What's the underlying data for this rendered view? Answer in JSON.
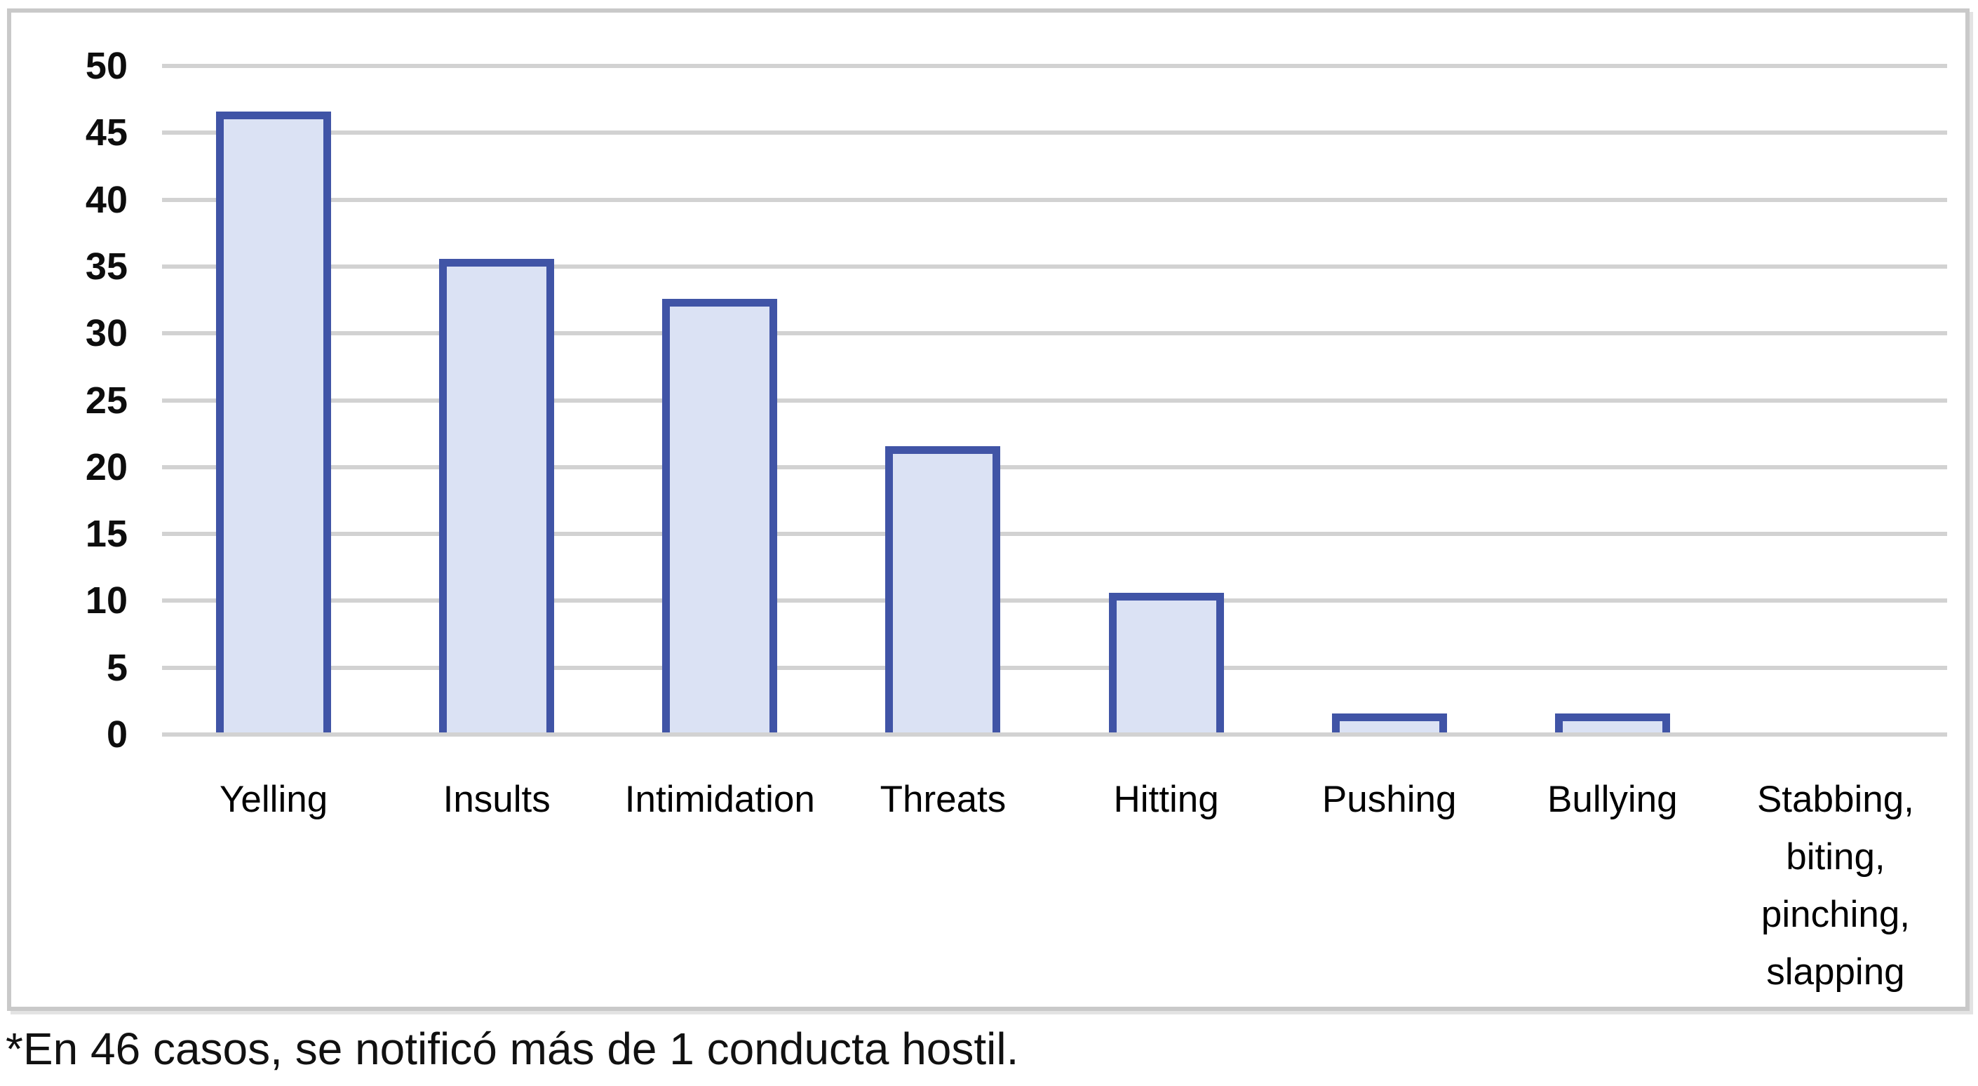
{
  "figure": {
    "footnote": "*En 46 casos, se notificó más de 1 conducta hostil."
  },
  "chart_data": {
    "type": "bar",
    "title": "",
    "categories": [
      "Yelling",
      "Insults",
      "Intimidation",
      "Threats",
      "Hitting",
      "Pushing",
      "Bullying",
      "Stabbing, biting, pinching, slapping"
    ],
    "category_lines": [
      [
        "Yelling"
      ],
      [
        "Insults"
      ],
      [
        "Intimidation"
      ],
      [
        "Threats"
      ],
      [
        "Hitting"
      ],
      [
        "Pushing"
      ],
      [
        "Bullying"
      ],
      [
        "Stabbing,",
        "biting,",
        "pinching,",
        "slapping"
      ]
    ],
    "values": [
      46,
      35,
      32,
      21,
      10,
      1,
      1,
      0
    ],
    "xlabel": "",
    "ylabel": "",
    "ylim": [
      0,
      50
    ],
    "yticks": [
      0,
      5,
      10,
      15,
      20,
      25,
      30,
      35,
      40,
      45,
      50
    ],
    "grid": true,
    "legend": false,
    "colors": {
      "bar_fill": "#dbe2f4",
      "bar_border": "#4054a6",
      "gridline": "#d2d2d2",
      "frame_border": "#c9c9c9",
      "axis_text": "#0d0d0d",
      "background": "#ffffff"
    }
  }
}
